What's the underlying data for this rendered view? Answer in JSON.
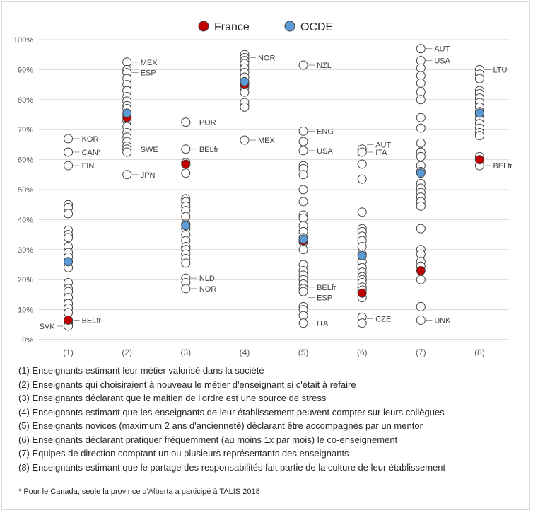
{
  "chart_data": {
    "type": "scatter",
    "legend": [
      {
        "name": "France",
        "color": "#c00000"
      },
      {
        "name": "OCDE",
        "color": "#5b9bd5"
      }
    ],
    "legend_position": "top-center",
    "y_axis": {
      "min": 0,
      "max": 100,
      "step": 10,
      "tick_labels": [
        "0%",
        "10%",
        "20%",
        "30%",
        "40%",
        "50%",
        "60%",
        "70%",
        "80%",
        "90%",
        "100%"
      ]
    },
    "categories": [
      "(1)",
      "(2)",
      "(3)",
      "(4)",
      "(5)",
      "(6)",
      "(7)",
      "(8)"
    ],
    "gridlines": true,
    "others": [
      [
        67,
        62.5,
        58,
        45,
        44,
        42,
        36.5,
        35,
        34,
        31,
        29,
        27.5,
        24,
        19,
        17,
        16,
        14,
        12,
        10.5,
        9,
        6,
        5,
        4.5
      ],
      [
        92.5,
        90,
        89,
        87,
        85,
        83,
        81,
        79.5,
        78,
        77,
        75,
        73,
        71,
        69,
        67.5,
        66,
        64.5,
        63.5,
        62.5,
        55
      ],
      [
        72.5,
        63.5,
        59,
        55.5,
        47,
        46,
        44.5,
        43,
        41,
        38.5,
        37,
        35,
        33,
        31,
        30,
        28.5,
        27,
        25.5,
        20.5,
        19,
        17
      ],
      [
        95,
        94,
        93,
        92,
        90.5,
        89,
        87.5,
        85.5,
        84,
        82.5,
        79,
        77.5,
        66.5
      ],
      [
        91.5,
        69.5,
        66,
        63,
        58,
        57,
        55,
        50,
        46,
        41.5,
        40.5,
        38,
        36,
        34,
        32.5,
        30,
        25,
        23,
        21.5,
        20,
        18.5,
        17,
        16,
        11,
        10,
        8,
        5.5
      ],
      [
        63.5,
        62.5,
        58.5,
        53.5,
        42.5,
        37,
        36,
        34.5,
        33,
        31,
        28.5,
        26,
        24,
        22.5,
        21,
        20,
        19,
        17.5,
        16.5,
        14,
        7.5,
        5.5
      ],
      [
        97,
        93,
        90.5,
        88,
        85.5,
        82.5,
        80,
        74,
        70.5,
        65.5,
        62.5,
        61,
        58,
        56,
        52,
        50.5,
        49,
        47.5,
        46,
        44.5,
        37,
        30,
        28.5,
        26,
        24.5,
        20,
        11,
        6.5
      ],
      [
        90,
        88.5,
        87,
        83,
        82,
        80.5,
        79,
        77.5,
        76,
        75,
        73.5,
        72,
        70.5,
        69,
        68,
        61,
        58
      ]
    ],
    "france": [
      6.5,
      74,
      58.5,
      85,
      33,
      15.5,
      23,
      60
    ],
    "ocde": [
      26,
      75.5,
      38,
      86,
      33.5,
      28,
      55.5,
      75.5
    ],
    "annotations": [
      {
        "cat": 1,
        "value": 67,
        "label": "KOR",
        "side": "right"
      },
      {
        "cat": 1,
        "value": 62.5,
        "label": "CAN*",
        "side": "right"
      },
      {
        "cat": 1,
        "value": 58,
        "label": "FIN",
        "side": "right"
      },
      {
        "cat": 1,
        "value": 4.5,
        "label": "SVK",
        "side": "left"
      },
      {
        "cat": 1,
        "value": 6.5,
        "label": "BELfr",
        "side": "right"
      },
      {
        "cat": 2,
        "value": 92.5,
        "label": "MEX",
        "side": "right"
      },
      {
        "cat": 2,
        "value": 89,
        "label": "ESP",
        "side": "right"
      },
      {
        "cat": 2,
        "value": 63.5,
        "label": "SWE",
        "side": "right"
      },
      {
        "cat": 2,
        "value": 55,
        "label": "JPN",
        "side": "right"
      },
      {
        "cat": 3,
        "value": 72.5,
        "label": "POR",
        "side": "right"
      },
      {
        "cat": 3,
        "value": 63.5,
        "label": "BELfr",
        "side": "right"
      },
      {
        "cat": 3,
        "value": 20.5,
        "label": "NLD",
        "side": "right"
      },
      {
        "cat": 3,
        "value": 17,
        "label": "NOR",
        "side": "right"
      },
      {
        "cat": 4,
        "value": 94,
        "label": "NOR",
        "side": "right"
      },
      {
        "cat": 4,
        "value": 66.5,
        "label": "MEX",
        "side": "right"
      },
      {
        "cat": 5,
        "value": 91.5,
        "label": "NZL",
        "side": "right"
      },
      {
        "cat": 5,
        "value": 69.5,
        "label": "ENG",
        "side": "right"
      },
      {
        "cat": 5,
        "value": 63,
        "label": "USA",
        "side": "right"
      },
      {
        "cat": 5,
        "value": 17.5,
        "label": "BELfr",
        "side": "right"
      },
      {
        "cat": 5,
        "value": 14,
        "label": "ESP",
        "side": "right"
      },
      {
        "cat": 5,
        "value": 5.5,
        "label": "ITA",
        "side": "right"
      },
      {
        "cat": 6,
        "value": 65,
        "label": "AUT",
        "side": "right"
      },
      {
        "cat": 6,
        "value": 62.5,
        "label": "ITA",
        "side": "right"
      },
      {
        "cat": 6,
        "value": 7,
        "label": "CZE",
        "side": "right"
      },
      {
        "cat": 7,
        "value": 97,
        "label": "AUT",
        "side": "right"
      },
      {
        "cat": 7,
        "value": 93,
        "label": "USA",
        "side": "right"
      },
      {
        "cat": 7,
        "value": 6.5,
        "label": "DNK",
        "side": "right"
      },
      {
        "cat": 8,
        "value": 90,
        "label": "LTU",
        "side": "right"
      },
      {
        "cat": 8,
        "value": 58,
        "label": "BELfr",
        "side": "right"
      }
    ]
  },
  "notes": [
    "(1) Enseignants estimant leur métier valorisé dans la société",
    "(2) Enseignants qui choisiraient à nouveau le métier d'enseignant si c'était à refaire",
    "(3) Enseignants déclarant que le maitien de l'ordre est une source de stress",
    "(4) Enseignants estimant que les enseignants de leur établissement peuvent compter sur leurs collègues",
    "(5) Enseignants novices (maximum 2 ans d'ancienneté) déclarant être accompagnés par un mentor",
    "(6) Enseignants déclarant pratiquer fréquemment (au moins 1x par mois) le co-enseignement",
    "(7) Équipes de direction comptant un ou plusieurs représentants des enseignants",
    "(8) Enseignants estimant que le partage des responsabilités fait partie de la culture de leur établissement"
  ],
  "footnote": "* Pour le Canada, seule la province d'Alberta a participé à TALIS 2018"
}
